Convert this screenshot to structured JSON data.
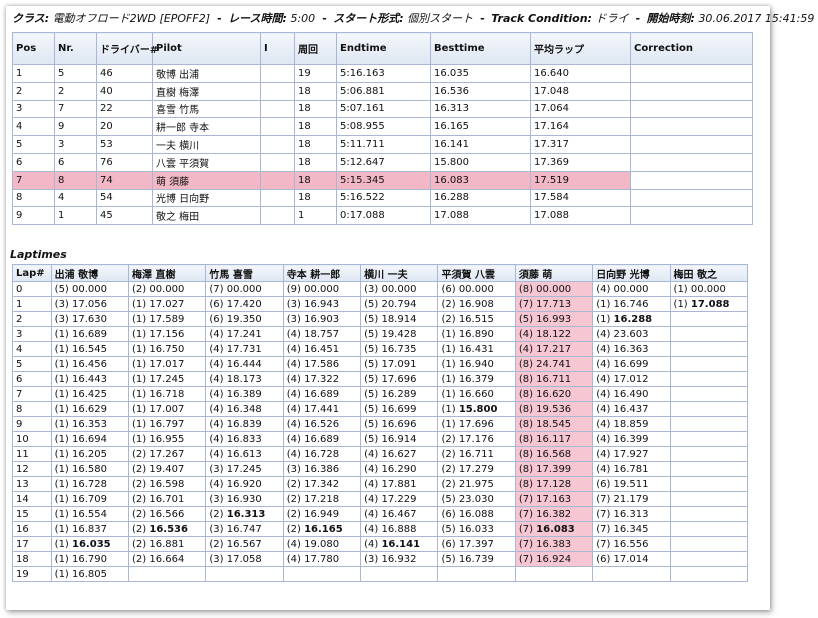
{
  "header": {
    "class_label": "クラス:",
    "class_value": "電動オフロード2WD [EPOFF2]",
    "race_time_label": "レース時間:",
    "race_time_value": "5:00",
    "start_label": "スタート形式:",
    "start_value": "個別スタート",
    "track_label": "Track Condition:",
    "track_value": "ドライ",
    "start_time_label": "開始時刻:",
    "start_time_value": "30.06.2017 15:41:59"
  },
  "results": {
    "columns": [
      "Pos",
      "Nr.",
      "ドライバー#",
      "Pilot",
      "I",
      "周回",
      "Endtime",
      "Besttime",
      "平均ラップ",
      "Correction"
    ],
    "highlight_row": 6,
    "highlight_color": "#f2b8c6",
    "rows": [
      [
        "1",
        "5",
        "46",
        "敬博 出浦",
        "",
        "19",
        "5:16.163",
        "16.035",
        "16.640",
        ""
      ],
      [
        "2",
        "2",
        "40",
        "直樹 梅澤",
        "",
        "18",
        "5:06.881",
        "16.536",
        "17.048",
        ""
      ],
      [
        "3",
        "7",
        "22",
        "喜雪 竹馬",
        "",
        "18",
        "5:07.161",
        "16.313",
        "17.064",
        ""
      ],
      [
        "4",
        "9",
        "20",
        "耕一郎 寺本",
        "",
        "18",
        "5:08.955",
        "16.165",
        "17.164",
        ""
      ],
      [
        "5",
        "3",
        "53",
        "一夫 横川",
        "",
        "18",
        "5:11.711",
        "16.141",
        "17.317",
        ""
      ],
      [
        "6",
        "6",
        "76",
        "八雲 平須賀",
        "",
        "18",
        "5:12.647",
        "15.800",
        "17.369",
        ""
      ],
      [
        "7",
        "8",
        "74",
        "萌 須藤",
        "",
        "18",
        "5:15.345",
        "16.083",
        "17.519",
        ""
      ],
      [
        "8",
        "4",
        "54",
        "光博 日向野",
        "",
        "18",
        "5:16.522",
        "16.288",
        "17.584",
        ""
      ],
      [
        "9",
        "1",
        "45",
        "敬之 梅田",
        "",
        "1",
        "0:17.088",
        "17.088",
        "17.088",
        ""
      ]
    ]
  },
  "laptimes": {
    "title": "Laptimes",
    "columns": [
      "Lap#",
      "出浦 敬博",
      "梅澤 直樹",
      "竹馬 喜雪",
      "寺本 耕一郎",
      "横川 一夫",
      "平須賀 八雲",
      "須藤 萌",
      "日向野 光博",
      "梅田 敬之"
    ],
    "highlight_column": 7,
    "highlight_color": "#f6c6d2",
    "rows": [
      [
        "0",
        "(5) 00.000",
        "(2) 00.000",
        "(7) 00.000",
        "(9) 00.000",
        "(3) 00.000",
        "(6) 00.000",
        "(8) 00.000",
        "(4) 00.000",
        "(1) 00.000"
      ],
      [
        "1",
        "(3) 17.056",
        "(1) 17.027",
        "(6) 17.420",
        "(3) 16.943",
        "(5) 20.794",
        "(2) 16.908",
        "(7) 17.713",
        "(1) 16.746",
        "(1) *17.088"
      ],
      [
        "2",
        "(3) 17.630",
        "(1) 17.589",
        "(6) 19.350",
        "(3) 16.903",
        "(5) 18.914",
        "(2) 16.515",
        "(5) 16.993",
        "(1) *16.288",
        ""
      ],
      [
        "3",
        "(1) 16.689",
        "(1) 17.156",
        "(4) 17.241",
        "(4) 18.757",
        "(5) 19.428",
        "(1) 16.890",
        "(4) 18.122",
        "(4) 23.603",
        ""
      ],
      [
        "4",
        "(1) 16.545",
        "(1) 16.750",
        "(4) 17.731",
        "(4) 16.451",
        "(5) 16.735",
        "(1) 16.431",
        "(4) 17.217",
        "(4) 16.363",
        ""
      ],
      [
        "5",
        "(1) 16.456",
        "(1) 17.017",
        "(4) 16.444",
        "(4) 17.586",
        "(5) 17.091",
        "(1) 16.940",
        "(8) 24.741",
        "(4) 16.699",
        ""
      ],
      [
        "6",
        "(1) 16.443",
        "(1) 17.245",
        "(4) 18.173",
        "(4) 17.322",
        "(5) 17.696",
        "(1) 16.379",
        "(8) 16.711",
        "(4) 17.012",
        ""
      ],
      [
        "7",
        "(1) 16.425",
        "(1) 16.718",
        "(4) 16.389",
        "(4) 16.689",
        "(5) 16.289",
        "(1) 16.660",
        "(8) 16.620",
        "(4) 16.490",
        ""
      ],
      [
        "8",
        "(1) 16.629",
        "(1) 17.007",
        "(4) 16.348",
        "(4) 17.441",
        "(5) 16.699",
        "(1) *15.800",
        "(8) 19.536",
        "(4) 16.437",
        ""
      ],
      [
        "9",
        "(1) 16.353",
        "(1) 16.797",
        "(4) 16.839",
        "(4) 16.526",
        "(5) 16.696",
        "(1) 17.696",
        "(8) 18.545",
        "(4) 18.859",
        ""
      ],
      [
        "10",
        "(1) 16.694",
        "(1) 16.955",
        "(4) 16.833",
        "(4) 16.689",
        "(5) 16.914",
        "(2) 17.176",
        "(8) 16.117",
        "(4) 16.399",
        ""
      ],
      [
        "11",
        "(1) 16.205",
        "(2) 17.267",
        "(4) 16.613",
        "(4) 16.728",
        "(4) 16.627",
        "(2) 16.711",
        "(8) 16.568",
        "(4) 17.927",
        ""
      ],
      [
        "12",
        "(1) 16.580",
        "(2) 19.407",
        "(3) 17.245",
        "(3) 16.386",
        "(4) 16.290",
        "(2) 17.279",
        "(8) 17.399",
        "(4) 16.781",
        ""
      ],
      [
        "13",
        "(1) 16.728",
        "(2) 16.598",
        "(4) 16.920",
        "(2) 17.342",
        "(4) 17.881",
        "(2) 21.975",
        "(8) 17.128",
        "(6) 19.511",
        ""
      ],
      [
        "14",
        "(1) 16.709",
        "(2) 16.701",
        "(3) 16.930",
        "(2) 17.218",
        "(4) 17.229",
        "(5) 23.030",
        "(7) 17.163",
        "(7) 21.179",
        ""
      ],
      [
        "15",
        "(1) 16.554",
        "(2) 16.566",
        "(2) *16.313",
        "(2) 16.949",
        "(4) 16.467",
        "(6) 16.088",
        "(7) 16.382",
        "(7) 16.313",
        ""
      ],
      [
        "16",
        "(1) 16.837",
        "(2) *16.536",
        "(3) 16.747",
        "(2) *16.165",
        "(4) 16.888",
        "(5) 16.033",
        "(7) *16.083",
        "(7) 16.345",
        ""
      ],
      [
        "17",
        "(1) *16.035",
        "(2) 16.881",
        "(2) 16.567",
        "(4) 19.080",
        "(4) *16.141",
        "(6) 17.397",
        "(7) 16.383",
        "(7) 16.556",
        ""
      ],
      [
        "18",
        "(1) 16.790",
        "(2) 16.664",
        "(3) 17.058",
        "(4) 17.780",
        "(3) 16.932",
        "(5) 16.739",
        "(7) 16.924",
        "(6) 17.014",
        ""
      ],
      [
        "19",
        "(1) 16.805",
        "",
        "",
        "",
        "",
        "",
        "",
        "",
        ""
      ]
    ]
  }
}
